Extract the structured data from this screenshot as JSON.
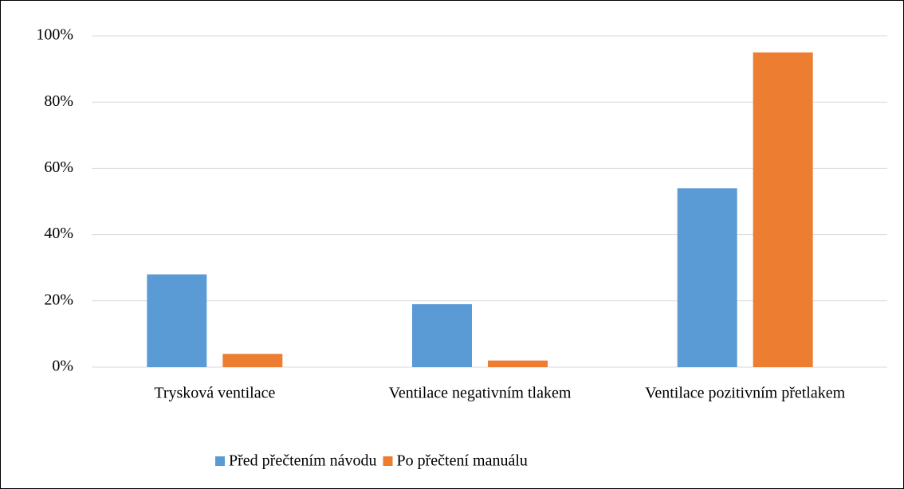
{
  "chart_data": {
    "type": "bar",
    "categories": [
      "Trysková ventilace",
      "Ventilace negativním tlakem",
      "Ventilace pozitivním přetlakem"
    ],
    "series": [
      {
        "name": "Před přečtením návodu",
        "color": "#5b9bd5",
        "values": [
          28,
          19,
          54
        ]
      },
      {
        "name": "Po přečtení manuálu",
        "color": "#ed7d31",
        "values": [
          4,
          2,
          95
        ]
      }
    ],
    "ylim": [
      0,
      100
    ],
    "yticks": [
      {
        "value": 0,
        "label": "0%"
      },
      {
        "value": 20,
        "label": "20%"
      },
      {
        "value": 40,
        "label": "40%"
      },
      {
        "value": 60,
        "label": "60%"
      },
      {
        "value": 80,
        "label": "80%"
      },
      {
        "value": 100,
        "label": "100%"
      }
    ],
    "grid": true,
    "legend": "bottom"
  }
}
